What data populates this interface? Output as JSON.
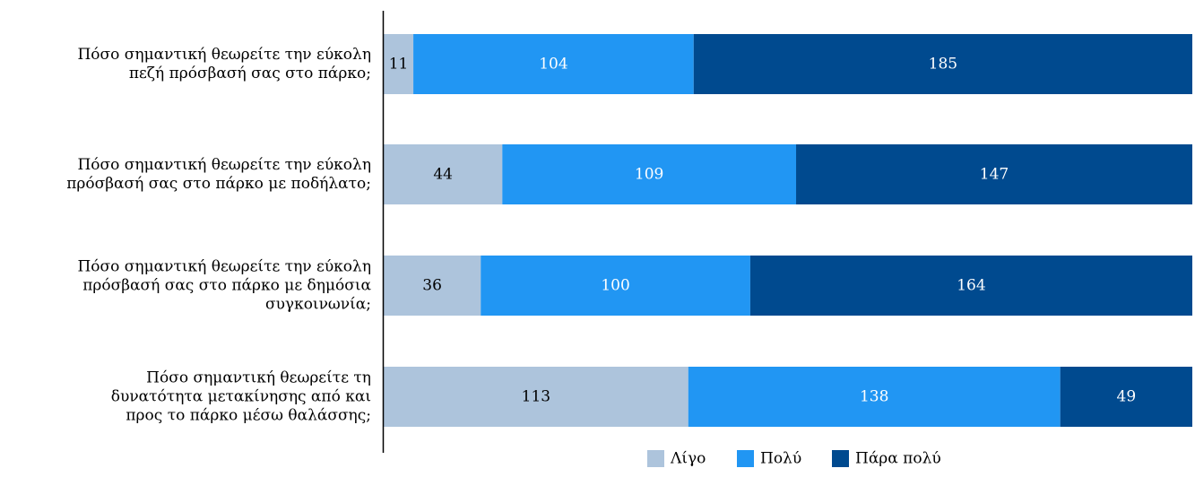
{
  "chart_data": {
    "type": "bar",
    "orientation": "horizontal",
    "stacked": true,
    "categories": [
      [
        "Πόσο σημαντική θεωρείτε την εύκολη",
        "πεζή πρόσβασή σας στο πάρκο;"
      ],
      [
        "Πόσο σημαντική θεωρείτε την εύκολη",
        "πρόσβασή σας στο πάρκο με ποδήλατο;"
      ],
      [
        "Πόσο σημαντική θεωρείτε την εύκολη",
        "πρόσβασή σας στο πάρκο με δημόσια",
        "συγκοινωνία;"
      ],
      [
        "Πόσο σημαντική θεωρείτε τη",
        "δυνατότητα μετακίνησης από και",
        "προς το πάρκο μέσω θαλάσσης;"
      ]
    ],
    "series": [
      {
        "name": "Λίγο",
        "color": "#adc4dc",
        "label_color": "#000000",
        "values": [
          11,
          44,
          36,
          113
        ]
      },
      {
        "name": "Πολύ",
        "color": "#2196f3",
        "label_color": "#ffffff",
        "values": [
          104,
          109,
          100,
          138
        ]
      },
      {
        "name": "Πάρα πολύ",
        "color": "#004a8f",
        "label_color": "#ffffff",
        "values": [
          185,
          147,
          164,
          49
        ]
      }
    ],
    "xlim": [
      0,
      300
    ],
    "legend_position": "bottom",
    "grid": false,
    "axis_color": "#000000"
  }
}
